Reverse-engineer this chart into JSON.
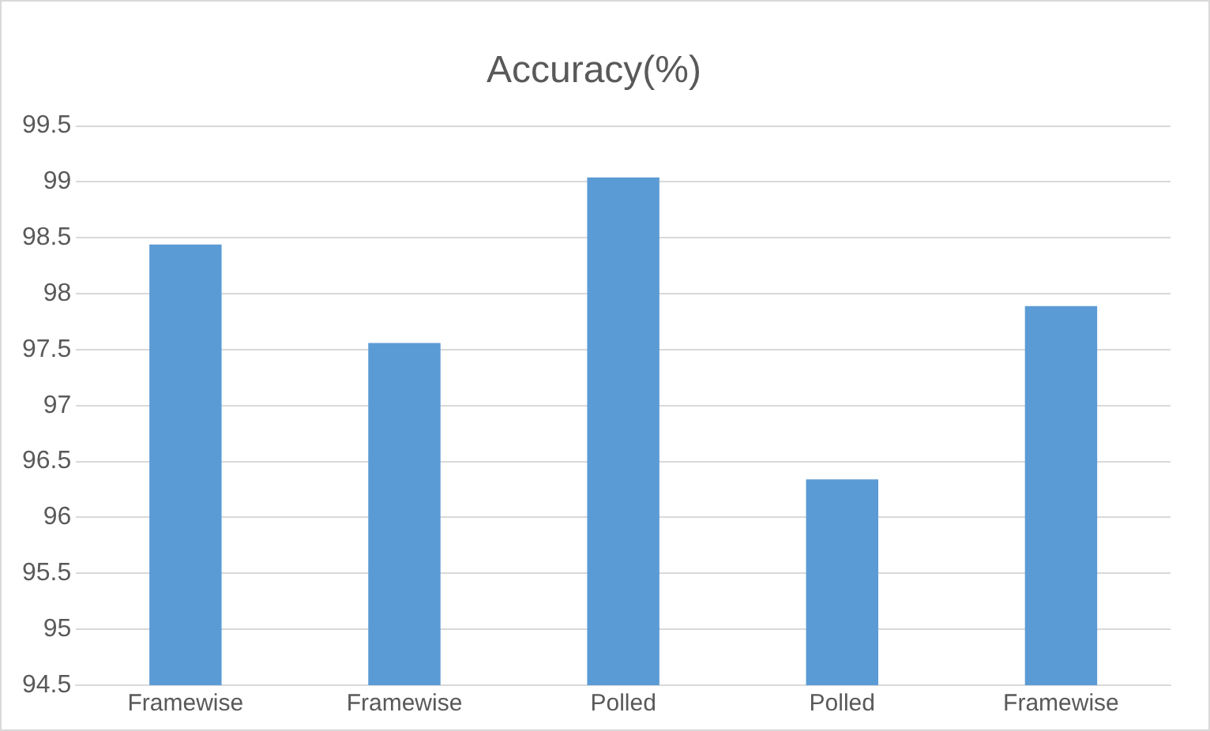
{
  "chart_data": {
    "type": "bar",
    "title": "Accuracy(%)",
    "categories": [
      "Framewise",
      "Framewise",
      "Polled",
      "Polled",
      "Framewise"
    ],
    "values": [
      98.44,
      97.56,
      99.04,
      96.34,
      97.89
    ],
    "color": "#5b9bd5",
    "ylim": [
      94.5,
      99.5
    ],
    "yticks": [
      94.5,
      95,
      95.5,
      96,
      96.5,
      97,
      97.5,
      98,
      98.5,
      99,
      99.5
    ],
    "grid": "y",
    "legend": false
  }
}
